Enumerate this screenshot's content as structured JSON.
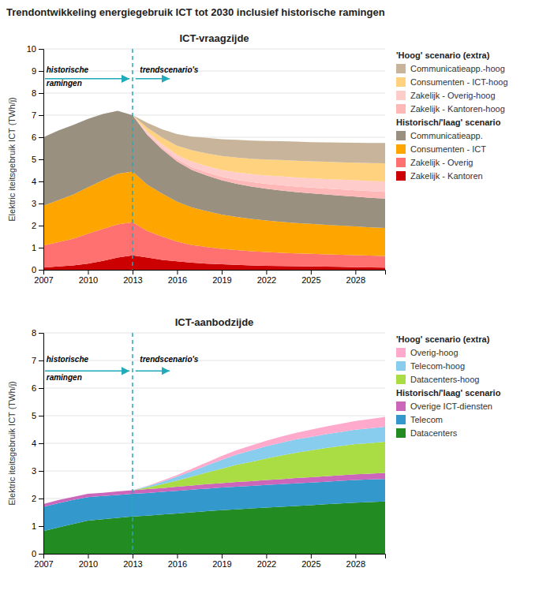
{
  "title": "Trendontwikkeling energiegebruik ICT tot 2030 inclusief historische ramingen",
  "chart_data": [
    {
      "type": "area",
      "stacked": true,
      "grid": true,
      "legend": "right",
      "title": "ICT-vraagzijde",
      "y_label": "Elektric iteitsgebruik ICT (TWh/j)",
      "x": [
        2007,
        2008,
        2009,
        2010,
        2011,
        2012,
        2013,
        2014,
        2015,
        2016,
        2017,
        2018,
        2019,
        2020,
        2021,
        2022,
        2023,
        2024,
        2025,
        2026,
        2027,
        2028,
        2029,
        2030
      ],
      "xlim": [
        2007,
        2030
      ],
      "xticks": [
        2007,
        2010,
        2013,
        2016,
        2019,
        2022,
        2025,
        2028
      ],
      "ylim": [
        0,
        10
      ],
      "yticks": [
        0,
        1,
        2,
        3,
        4,
        5,
        6,
        7,
        8,
        9,
        10
      ],
      "series": [
        {
          "name": "Zakelijk - Kantoren",
          "color": "#cc0000",
          "values": [
            0.1,
            0.15,
            0.2,
            0.28,
            0.4,
            0.55,
            0.65,
            0.55,
            0.45,
            0.38,
            0.32,
            0.28,
            0.25,
            0.22,
            0.2,
            0.18,
            0.17,
            0.16,
            0.15,
            0.14,
            0.13,
            0.12,
            0.11,
            0.1
          ]
        },
        {
          "name": "Zakelijk - Overig",
          "color": "#ff7070",
          "values": [
            1.0,
            1.1,
            1.2,
            1.35,
            1.45,
            1.5,
            1.5,
            1.2,
            1.05,
            0.9,
            0.8,
            0.75,
            0.7,
            0.67,
            0.64,
            0.62,
            0.6,
            0.58,
            0.57,
            0.56,
            0.55,
            0.54,
            0.53,
            0.52
          ]
        },
        {
          "name": "Consumenten - ICT",
          "color": "#ffa500",
          "values": [
            1.8,
            1.9,
            2.0,
            2.1,
            2.2,
            2.3,
            2.3,
            2.1,
            1.95,
            1.8,
            1.7,
            1.62,
            1.55,
            1.5,
            1.46,
            1.43,
            1.4,
            1.38,
            1.36,
            1.34,
            1.32,
            1.3,
            1.28,
            1.27
          ]
        },
        {
          "name": "Communicatieapp.",
          "color": "#999080",
          "values": [
            3.1,
            3.15,
            3.15,
            3.1,
            3.0,
            2.85,
            2.55,
            2.25,
            2.0,
            1.82,
            1.7,
            1.62,
            1.55,
            1.5,
            1.47,
            1.44,
            1.42,
            1.4,
            1.38,
            1.37,
            1.36,
            1.35,
            1.34,
            1.33
          ]
        },
        {
          "name": "Zakelijk - Kantoren-hoog",
          "color": "#ffb8b8",
          "values": [
            0.0,
            0.0,
            0.0,
            0.0,
            0.0,
            0.0,
            0.0,
            0.05,
            0.08,
            0.1,
            0.12,
            0.14,
            0.16,
            0.18,
            0.2,
            0.22,
            0.24,
            0.25,
            0.26,
            0.27,
            0.28,
            0.29,
            0.3,
            0.31
          ]
        },
        {
          "name": "Zakelijk - Overig-hoog",
          "color": "#ffcccc",
          "values": [
            0.0,
            0.0,
            0.0,
            0.0,
            0.0,
            0.0,
            0.0,
            0.1,
            0.15,
            0.2,
            0.25,
            0.28,
            0.31,
            0.34,
            0.36,
            0.38,
            0.4,
            0.41,
            0.42,
            0.43,
            0.44,
            0.45,
            0.46,
            0.47
          ]
        },
        {
          "name": "Consumenten - ICT-hoog",
          "color": "#ffd280",
          "values": [
            0.0,
            0.0,
            0.0,
            0.0,
            0.0,
            0.0,
            0.0,
            0.18,
            0.3,
            0.42,
            0.52,
            0.58,
            0.63,
            0.67,
            0.7,
            0.72,
            0.74,
            0.76,
            0.77,
            0.78,
            0.79,
            0.8,
            0.81,
            0.82
          ]
        },
        {
          "name": "Communicatieapp.-hoog",
          "color": "#c8b49a",
          "values": [
            0.0,
            0.0,
            0.0,
            0.0,
            0.0,
            0.0,
            0.0,
            0.22,
            0.38,
            0.52,
            0.62,
            0.7,
            0.76,
            0.8,
            0.82,
            0.84,
            0.85,
            0.86,
            0.87,
            0.88,
            0.89,
            0.9,
            0.91,
            0.92
          ]
        }
      ],
      "legend_groups": [
        {
          "title": "'Hoog' scenario (extra)",
          "series": [
            7,
            6,
            5,
            4
          ]
        },
        {
          "title": "Historisch/'laag' scenario",
          "series": [
            3,
            2,
            1,
            0
          ]
        }
      ],
      "vline": {
        "x": 2013,
        "color": "#22aabb"
      },
      "arrows": [
        {
          "x": [
            2007.1,
            2012.8
          ],
          "y": 8.65,
          "color": "#22aabb"
        },
        {
          "x": [
            2013.2,
            2015.5
          ],
          "y": 8.65,
          "color": "#22aabb"
        }
      ],
      "annotations": [
        {
          "text": "historische",
          "x": 2007.2,
          "y": 9.05
        },
        {
          "text": "ramingen",
          "x": 2007.2,
          "y": 8.45
        },
        {
          "text": "trendscenario's",
          "x": 2013.5,
          "y": 9.05
        }
      ]
    },
    {
      "type": "area",
      "stacked": true,
      "grid": true,
      "legend": "right",
      "title": "ICT-aanbodzijde",
      "y_label": "Elektric iteitsgebruik ICT (TWh/j)",
      "x": [
        2007,
        2008,
        2009,
        2010,
        2011,
        2012,
        2013,
        2014,
        2015,
        2016,
        2017,
        2018,
        2019,
        2020,
        2021,
        2022,
        2023,
        2024,
        2025,
        2026,
        2027,
        2028,
        2029,
        2030
      ],
      "xlim": [
        2007,
        2030
      ],
      "xticks": [
        2007,
        2010,
        2013,
        2016,
        2019,
        2022,
        2025,
        2028
      ],
      "ylim": [
        0,
        8
      ],
      "yticks": [
        0,
        1,
        2,
        3,
        4,
        5,
        6,
        7,
        8
      ],
      "series": [
        {
          "name": "Datacenters",
          "color": "#228B22",
          "values": [
            0.82,
            0.95,
            1.08,
            1.2,
            1.25,
            1.3,
            1.35,
            1.38,
            1.42,
            1.46,
            1.5,
            1.54,
            1.58,
            1.61,
            1.64,
            1.67,
            1.7,
            1.73,
            1.76,
            1.79,
            1.82,
            1.85,
            1.87,
            1.89
          ]
        },
        {
          "name": "Telecom",
          "color": "#3399cc",
          "values": [
            0.88,
            0.88,
            0.87,
            0.85,
            0.84,
            0.83,
            0.82,
            0.82,
            0.82,
            0.82,
            0.82,
            0.82,
            0.82,
            0.82,
            0.82,
            0.82,
            0.82,
            0.82,
            0.82,
            0.82,
            0.82,
            0.82,
            0.82,
            0.82
          ]
        },
        {
          "name": "Overige ICT-diensten",
          "color": "#cc66bb",
          "values": [
            0.1,
            0.11,
            0.11,
            0.12,
            0.12,
            0.13,
            0.13,
            0.14,
            0.14,
            0.15,
            0.15,
            0.16,
            0.16,
            0.17,
            0.17,
            0.18,
            0.18,
            0.19,
            0.19,
            0.2,
            0.2,
            0.21,
            0.21,
            0.22
          ]
        },
        {
          "name": "Datacenters-hoog",
          "color": "#aadd44",
          "values": [
            0.0,
            0.0,
            0.0,
            0.0,
            0.0,
            0.0,
            0.0,
            0.06,
            0.14,
            0.22,
            0.32,
            0.42,
            0.52,
            0.62,
            0.7,
            0.78,
            0.86,
            0.92,
            0.97,
            1.02,
            1.06,
            1.09,
            1.11,
            1.13
          ]
        },
        {
          "name": "Telecom-hoog",
          "color": "#88ccee",
          "values": [
            0.0,
            0.0,
            0.0,
            0.0,
            0.0,
            0.0,
            0.0,
            0.04,
            0.09,
            0.14,
            0.2,
            0.26,
            0.32,
            0.37,
            0.41,
            0.44,
            0.46,
            0.48,
            0.49,
            0.5,
            0.51,
            0.52,
            0.53,
            0.54
          ]
        },
        {
          "name": "Overig-hoog",
          "color": "#ffaacc",
          "values": [
            0.0,
            0.0,
            0.0,
            0.0,
            0.0,
            0.0,
            0.0,
            0.02,
            0.04,
            0.06,
            0.09,
            0.11,
            0.14,
            0.16,
            0.18,
            0.2,
            0.22,
            0.24,
            0.26,
            0.28,
            0.3,
            0.32,
            0.34,
            0.36
          ]
        }
      ],
      "legend_groups": [
        {
          "title": "'Hoog' scenario (extra)",
          "series": [
            5,
            4,
            3
          ]
        },
        {
          "title": "Historisch/'laag' scenario",
          "series": [
            2,
            1,
            0
          ]
        }
      ],
      "vline": {
        "x": 2013,
        "color": "#22aabb"
      },
      "arrows": [
        {
          "x": [
            2007.1,
            2012.8
          ],
          "y": 6.62,
          "color": "#22aabb"
        },
        {
          "x": [
            2013.2,
            2015.5
          ],
          "y": 6.62,
          "color": "#22aabb"
        }
      ],
      "annotations": [
        {
          "text": "historische",
          "x": 2007.2,
          "y": 7.05
        },
        {
          "text": "ramingen",
          "x": 2007.2,
          "y": 6.4
        },
        {
          "text": "trendscenario's",
          "x": 2013.5,
          "y": 7.05
        }
      ]
    }
  ]
}
